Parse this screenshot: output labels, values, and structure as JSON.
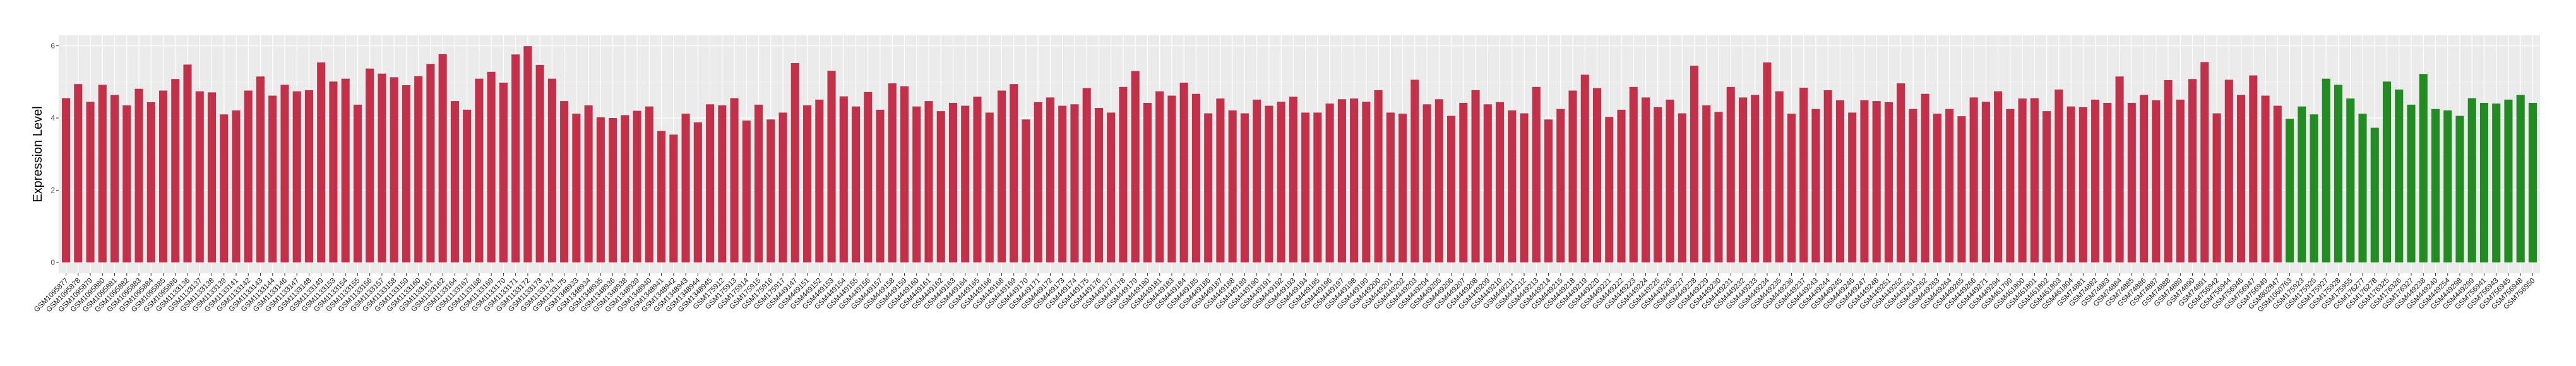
{
  "chart_data": {
    "type": "bar",
    "title": "",
    "xlabel": "",
    "ylabel": "Expression Level",
    "ylim": [
      -0.3,
      6.29
    ],
    "yticks": [
      0,
      2,
      4,
      6
    ],
    "grid": true,
    "legend": "none",
    "colors": {
      "group1": "#C3304A",
      "group2": "#228B22",
      "panel": "#EBEBEB",
      "grid": "#FFFFFF"
    },
    "categories": [
      "GSM1095877",
      "GSM1095878",
      "GSM1095879",
      "GSM1095880",
      "GSM1095881",
      "GSM1095882",
      "GSM1095883",
      "GSM1095884",
      "GSM1095885",
      "GSM1095886",
      "GSM1133136",
      "GSM1133137",
      "GSM1133138",
      "GSM1133139",
      "GSM1133141",
      "GSM1133142",
      "GSM1133143",
      "GSM1133144",
      "GSM1133146",
      "GSM1133147",
      "GSM1133148",
      "GSM1133149",
      "GSM1133153",
      "GSM1133154",
      "GSM1133155",
      "GSM1133156",
      "GSM1133157",
      "GSM1133158",
      "GSM1133159",
      "GSM1133160",
      "GSM1133161",
      "GSM1133162",
      "GSM1133164",
      "GSM1133167",
      "GSM1133168",
      "GSM1133169",
      "GSM1133170",
      "GSM1133171",
      "GSM1133172",
      "GSM1133173",
      "GSM1133174",
      "GSM1133175",
      "GSM1348933",
      "GSM1348934",
      "GSM1348935",
      "GSM1348936",
      "GSM1348938",
      "GSM1348939",
      "GSM1348940",
      "GSM1348941",
      "GSM1348942",
      "GSM1348943",
      "GSM1348944",
      "GSM1348945",
      "GSM175912",
      "GSM175913",
      "GSM175914",
      "GSM175915",
      "GSM175916",
      "GSM175917",
      "GSM449147",
      "GSM449151",
      "GSM449152",
      "GSM449153",
      "GSM449154",
      "GSM449155",
      "GSM449156",
      "GSM449157",
      "GSM449158",
      "GSM449159",
      "GSM449160",
      "GSM449161",
      "GSM449162",
      "GSM449163",
      "GSM449164",
      "GSM449165",
      "GSM449166",
      "GSM449168",
      "GSM449169",
      "GSM449170",
      "GSM449171",
      "GSM449172",
      "GSM449173",
      "GSM449174",
      "GSM449175",
      "GSM449176",
      "GSM449177",
      "GSM449178",
      "GSM449179",
      "GSM449180",
      "GSM449181",
      "GSM449183",
      "GSM449184",
      "GSM449185",
      "GSM449186",
      "GSM449187",
      "GSM449188",
      "GSM449189",
      "GSM449190",
      "GSM449191",
      "GSM449192",
      "GSM449193",
      "GSM449194",
      "GSM449195",
      "GSM449196",
      "GSM449197",
      "GSM449198",
      "GSM449199",
      "GSM449200",
      "GSM449201",
      "GSM449202",
      "GSM449203",
      "GSM449204",
      "GSM449205",
      "GSM449206",
      "GSM449207",
      "GSM449208",
      "GSM449209",
      "GSM449210",
      "GSM449211",
      "GSM449212",
      "GSM449213",
      "GSM449214",
      "GSM449215",
      "GSM449218",
      "GSM449219",
      "GSM449220",
      "GSM449221",
      "GSM449222",
      "GSM449223",
      "GSM449224",
      "GSM449225",
      "GSM449226",
      "GSM449227",
      "GSM449228",
      "GSM449229",
      "GSM449230",
      "GSM449231",
      "GSM449232",
      "GSM449233",
      "GSM449234",
      "GSM449235",
      "GSM449236",
      "GSM449237",
      "GSM449243",
      "GSM449244",
      "GSM449245",
      "GSM449246",
      "GSM449247",
      "GSM449248",
      "GSM449251",
      "GSM449252",
      "GSM449261",
      "GSM449262",
      "GSM449263",
      "GSM449264",
      "GSM449265",
      "GSM449266",
      "GSM449271",
      "GSM449294",
      "GSM461799",
      "GSM461800",
      "GSM461801",
      "GSM461802",
      "GSM461803",
      "GSM461804",
      "GSM74881",
      "GSM74882",
      "GSM74883",
      "GSM74884",
      "GSM74885",
      "GSM74886",
      "GSM74887",
      "GSM74888",
      "GSM74889",
      "GSM74890",
      "GSM74891",
      "GSM756942",
      "GSM756944",
      "GSM756946",
      "GSM756947",
      "GSM756949",
      "GSM802847",
      "GSM1060763",
      "GSM175923",
      "GSM175925",
      "GSM175927",
      "GSM175928",
      "GSM175955",
      "GSM176277",
      "GSM176278",
      "GSM176325",
      "GSM176326",
      "GSM176327",
      "GSM449238",
      "GSM449240",
      "GSM449254",
      "GSM449298",
      "GSM449299",
      "GSM756941",
      "GSM756943",
      "GSM756945",
      "GSM756948",
      "GSM756950"
    ],
    "values": [
      4.55,
      4.94,
      4.45,
      4.92,
      4.64,
      4.35,
      4.81,
      4.44,
      4.76,
      5.08,
      5.48,
      4.74,
      4.71,
      4.1,
      4.21,
      4.76,
      5.15,
      4.62,
      4.92,
      4.74,
      4.77,
      5.54,
      5.01,
      5.09,
      4.37,
      5.37,
      5.23,
      5.13,
      4.91,
      5.16,
      5.5,
      5.77,
      4.47,
      4.23,
      5.09,
      5.28,
      4.98,
      5.76,
      5.99,
      5.47,
      5.09,
      4.47,
      4.12,
      4.35,
      4.02,
      4.0,
      4.08,
      4.2,
      4.32,
      3.64,
      3.54,
      4.12,
      3.88,
      4.38,
      4.35,
      4.55,
      3.93,
      4.37,
      3.96,
      4.15,
      5.52,
      4.35,
      4.51,
      5.31,
      4.6,
      4.32,
      4.72,
      4.23,
      4.96,
      4.88,
      4.32,
      4.47,
      4.19,
      4.42,
      4.34,
      4.59,
      4.15,
      4.76,
      4.94,
      3.96,
      4.44,
      4.57,
      4.34,
      4.38,
      4.83,
      4.28,
      4.15,
      4.86,
      5.3,
      4.42,
      4.74,
      4.62,
      4.98,
      4.67,
      4.13,
      4.54,
      4.21,
      4.13,
      4.51,
      4.34,
      4.45,
      4.59,
      4.15,
      4.15,
      4.4,
      4.52,
      4.54,
      4.45,
      4.77,
      4.15,
      4.12,
      5.06,
      4.38,
      4.52,
      4.06,
      4.42,
      4.77,
      4.38,
      4.44,
      4.21,
      4.13,
      4.86,
      3.96,
      4.25,
      4.76,
      5.2,
      4.83,
      4.03,
      4.23,
      4.86,
      4.57,
      4.3,
      4.51,
      4.13,
      5.45,
      4.35,
      4.17,
      4.86,
      4.57,
      4.64,
      5.54,
      4.74,
      4.12,
      4.84,
      4.25,
      4.77,
      4.49,
      4.15,
      4.49,
      4.47,
      4.44,
      4.96,
      4.25,
      4.67,
      4.12,
      4.25,
      4.05,
      4.57,
      4.45,
      4.74,
      4.25,
      4.54,
      4.55,
      4.19,
      4.79,
      4.32,
      4.3,
      4.51,
      4.42,
      5.15,
      4.42,
      4.64,
      4.49,
      5.05,
      4.51,
      5.08,
      5.55,
      4.13,
      5.06,
      4.64,
      5.18,
      4.62,
      4.34,
      3.98,
      4.32,
      4.1,
      5.09,
      4.92,
      4.54,
      4.12,
      3.73,
      5.01,
      4.79,
      4.37,
      5.22,
      4.25,
      4.21,
      4.06,
      4.55,
      4.42,
      4.4,
      4.51,
      4.64,
      4.42
    ],
    "group2_start_index": 183
  }
}
